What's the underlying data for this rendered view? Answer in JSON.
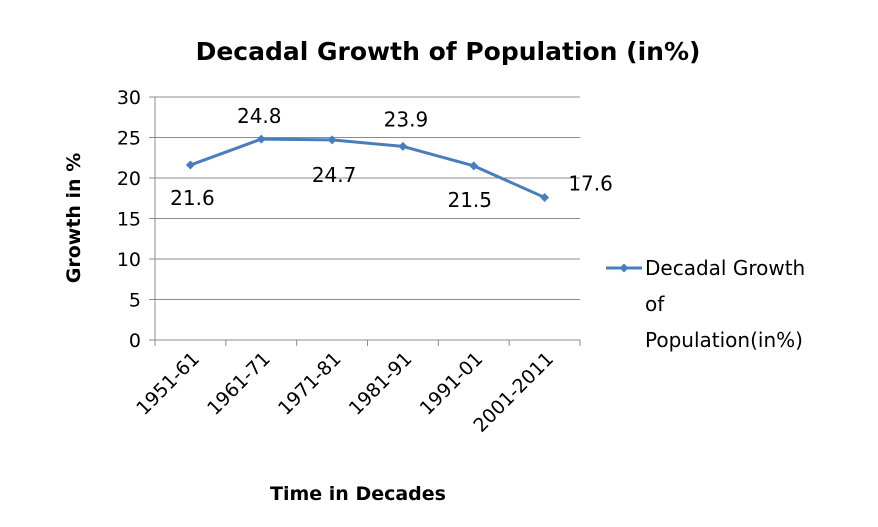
{
  "chart_data": {
    "type": "line",
    "title": "Decadal Growth of Population (in%)",
    "xlabel": "Time in Decades",
    "ylabel": "Growth in %",
    "categories": [
      "1951-61",
      "1961-71",
      "1971-81",
      "1981-91",
      "1991-01",
      "2001-2011"
    ],
    "series": [
      {
        "name": "Decadal Growth of Population(in%)",
        "values": [
          21.6,
          24.8,
          24.7,
          23.9,
          21.5,
          17.6
        ],
        "color": "#4a7ebb"
      }
    ],
    "ylim": [
      0,
      30
    ],
    "yticks": [
      0,
      5,
      10,
      15,
      20,
      25,
      30
    ],
    "grid": true,
    "legend_position": "right",
    "legend_lines": [
      "Decadal Growth",
      "of",
      "Population(in%)"
    ]
  }
}
